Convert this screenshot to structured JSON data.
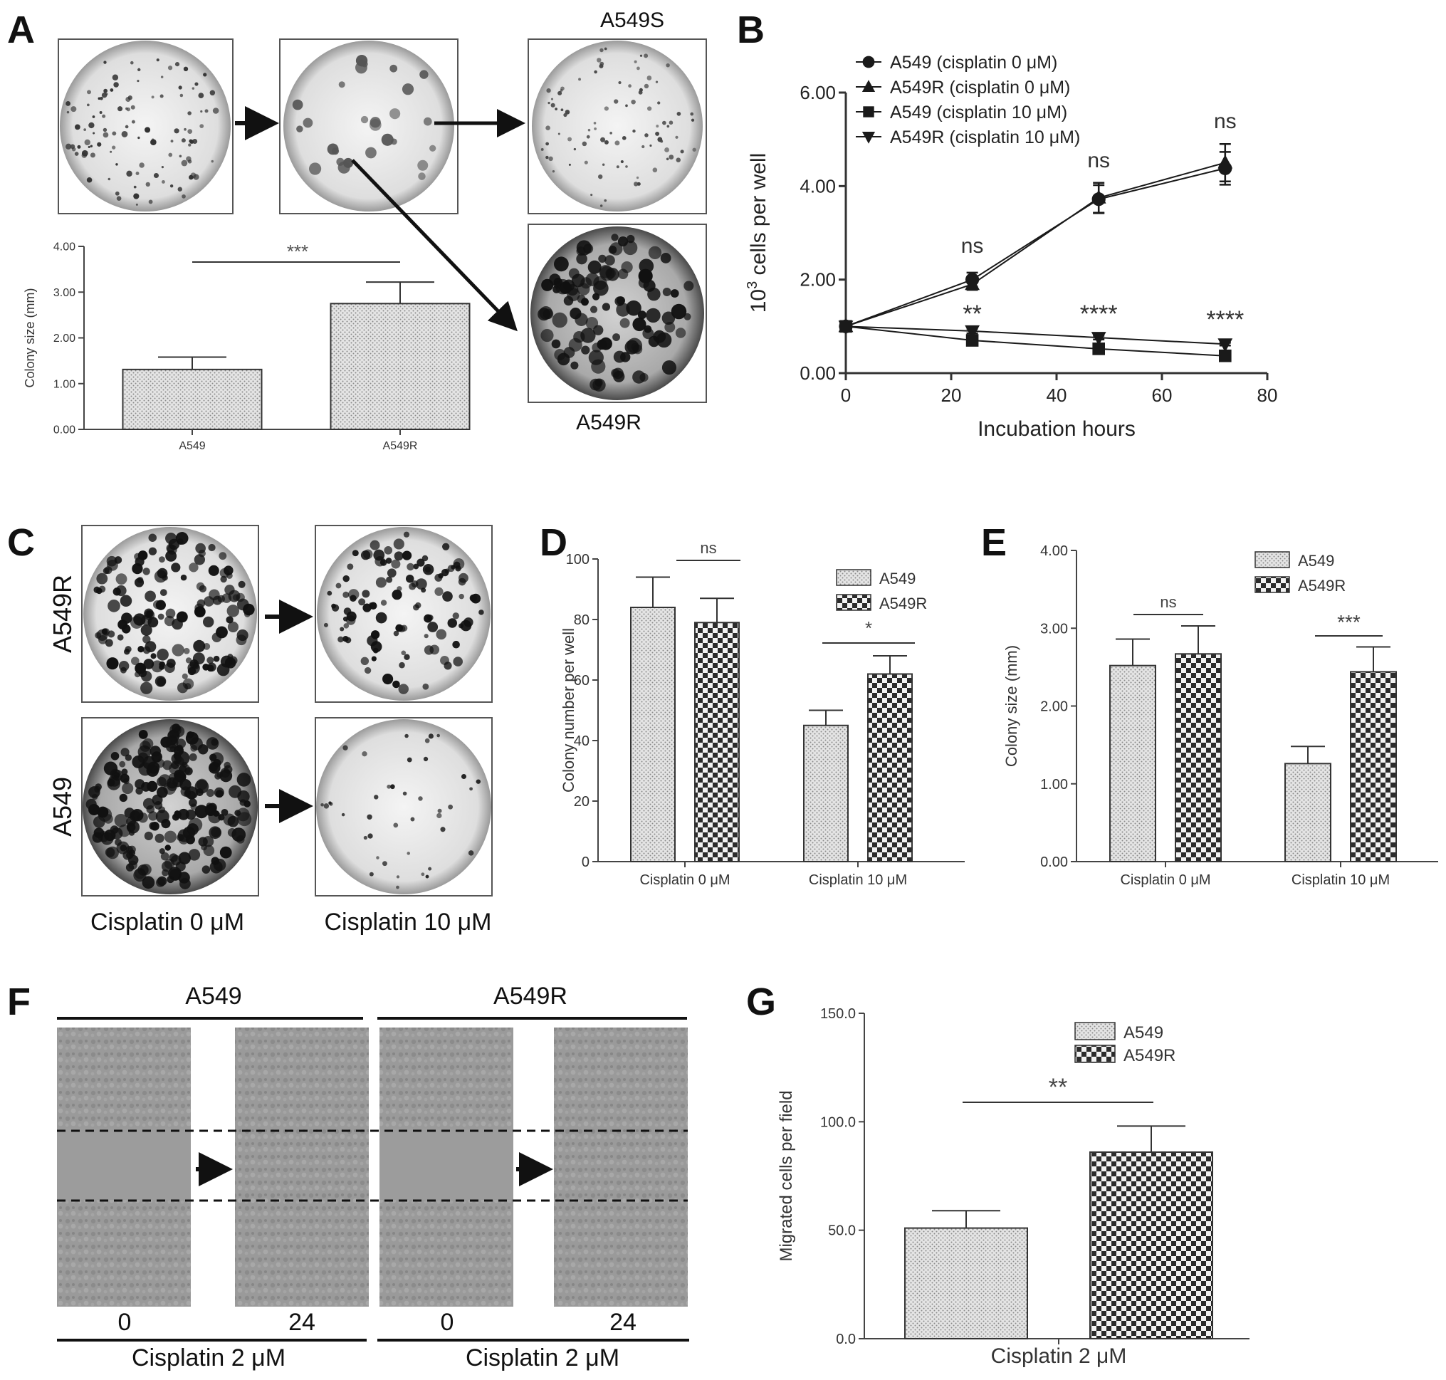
{
  "figure": {
    "panel_letters": [
      "A",
      "B",
      "C",
      "D",
      "E",
      "F",
      "G"
    ]
  },
  "panel_a": {
    "image_labels": {
      "top_right": "A549S",
      "bottom_right": "A549R"
    }
  },
  "panel_c": {
    "row_labels": [
      "A549R",
      "A549"
    ],
    "col_labels": [
      "Cisplatin 0 μM",
      "Cisplatin 10 μM"
    ]
  },
  "panel_f": {
    "group_labels": [
      "A549",
      "A549R"
    ],
    "time_labels": [
      "0",
      "24",
      "0",
      "24"
    ],
    "bottom_labels": [
      "Cisplatin 2 μM",
      "Cisplatin 2 μM"
    ]
  },
  "colors": {
    "ink": "#1a1a1a",
    "axis": "#333333",
    "stipple_bg": "#e6e6e6",
    "check_bg": "#d8d8d8"
  },
  "chart_data": [
    {
      "panel": "A",
      "type": "bar",
      "ylabel": "Colony size (mm)",
      "ylim": [
        0,
        4
      ],
      "yticks": [
        "0.00",
        "1.00",
        "2.00",
        "3.00",
        "4.00"
      ],
      "categories": [
        "A549",
        "A549R"
      ],
      "values": [
        1.31,
        2.75
      ],
      "errors": [
        0.27,
        0.47
      ],
      "significance": "***"
    },
    {
      "panel": "B",
      "type": "line",
      "xlabel": "Incubation hours",
      "ylabel_base": "10",
      "ylabel_exp": "3",
      "ylabel_rest": " cells per well",
      "xlim": [
        0,
        80
      ],
      "ylim": [
        0,
        6
      ],
      "xticks": [
        "0",
        "20",
        "40",
        "60",
        "80"
      ],
      "yticks": [
        "0.00",
        "2.00",
        "4.00",
        "6.00"
      ],
      "x": [
        0,
        24,
        48,
        72
      ],
      "series": [
        {
          "name": "A549 (cisplatin 0 μM)",
          "marker": "circle",
          "values": [
            1.0,
            2.0,
            3.72,
            4.38
          ],
          "errors": [
            0.02,
            0.15,
            0.3,
            0.35
          ]
        },
        {
          "name": "A549R (cisplatin 0 μM)",
          "marker": "triangle-up",
          "values": [
            1.0,
            1.9,
            3.75,
            4.5
          ],
          "errors": [
            0.02,
            0.12,
            0.32,
            0.4
          ]
        },
        {
          "name": "A549 (cisplatin 10 μM)",
          "marker": "square",
          "values": [
            1.0,
            0.7,
            0.52,
            0.37
          ],
          "errors": [
            0.02,
            0.05,
            0.04,
            0.03
          ]
        },
        {
          "name": "A549R (cisplatin 10 μM)",
          "marker": "triangle-down",
          "values": [
            1.0,
            0.9,
            0.76,
            0.62
          ],
          "errors": [
            0.02,
            0.05,
            0.04,
            0.03
          ]
        }
      ],
      "annotations": [
        {
          "x": 24,
          "text": "ns"
        },
        {
          "x": 48,
          "text": "ns"
        },
        {
          "x": 72,
          "text": "ns"
        },
        {
          "x": 24,
          "text": "**"
        },
        {
          "x": 48,
          "text": "****"
        },
        {
          "x": 72,
          "text": "****"
        }
      ]
    },
    {
      "panel": "D",
      "type": "bar",
      "ylabel": "Colony number per well",
      "ylim": [
        0,
        100
      ],
      "yticks": [
        "0",
        "20",
        "40",
        "60",
        "80",
        "100"
      ],
      "categories": [
        "Cisplatin 0 μM",
        "Cisplatin 10 μM"
      ],
      "series": [
        {
          "name": "A549",
          "values": [
            84,
            45
          ],
          "errors": [
            10,
            5
          ]
        },
        {
          "name": "A549R",
          "values": [
            79,
            62
          ],
          "errors": [
            8,
            6
          ]
        }
      ],
      "significance": [
        "ns",
        "*"
      ]
    },
    {
      "panel": "E",
      "type": "bar",
      "ylabel": "Colony size (mm)",
      "ylim": [
        0,
        4
      ],
      "yticks": [
        "0.00",
        "1.00",
        "2.00",
        "3.00",
        "4.00"
      ],
      "categories": [
        "Cisplatin 0 μM",
        "Cisplatin 10 μM"
      ],
      "series": [
        {
          "name": "A549",
          "values": [
            2.52,
            1.26
          ],
          "errors": [
            0.34,
            0.22
          ]
        },
        {
          "name": "A549R",
          "values": [
            2.67,
            2.44
          ],
          "errors": [
            0.36,
            0.32
          ]
        }
      ],
      "significance": [
        "ns",
        "***"
      ]
    },
    {
      "panel": "G",
      "type": "bar",
      "ylabel": "Migrated cells per field",
      "ylim": [
        0,
        150
      ],
      "yticks": [
        "0.0",
        "50.0",
        "100.0",
        "150.0"
      ],
      "categories": [
        "Cisplatin 2 μM"
      ],
      "series": [
        {
          "name": "A549",
          "values": [
            51
          ],
          "errors": [
            8
          ]
        },
        {
          "name": "A549R",
          "values": [
            86
          ],
          "errors": [
            12
          ]
        }
      ],
      "significance": "**"
    }
  ]
}
